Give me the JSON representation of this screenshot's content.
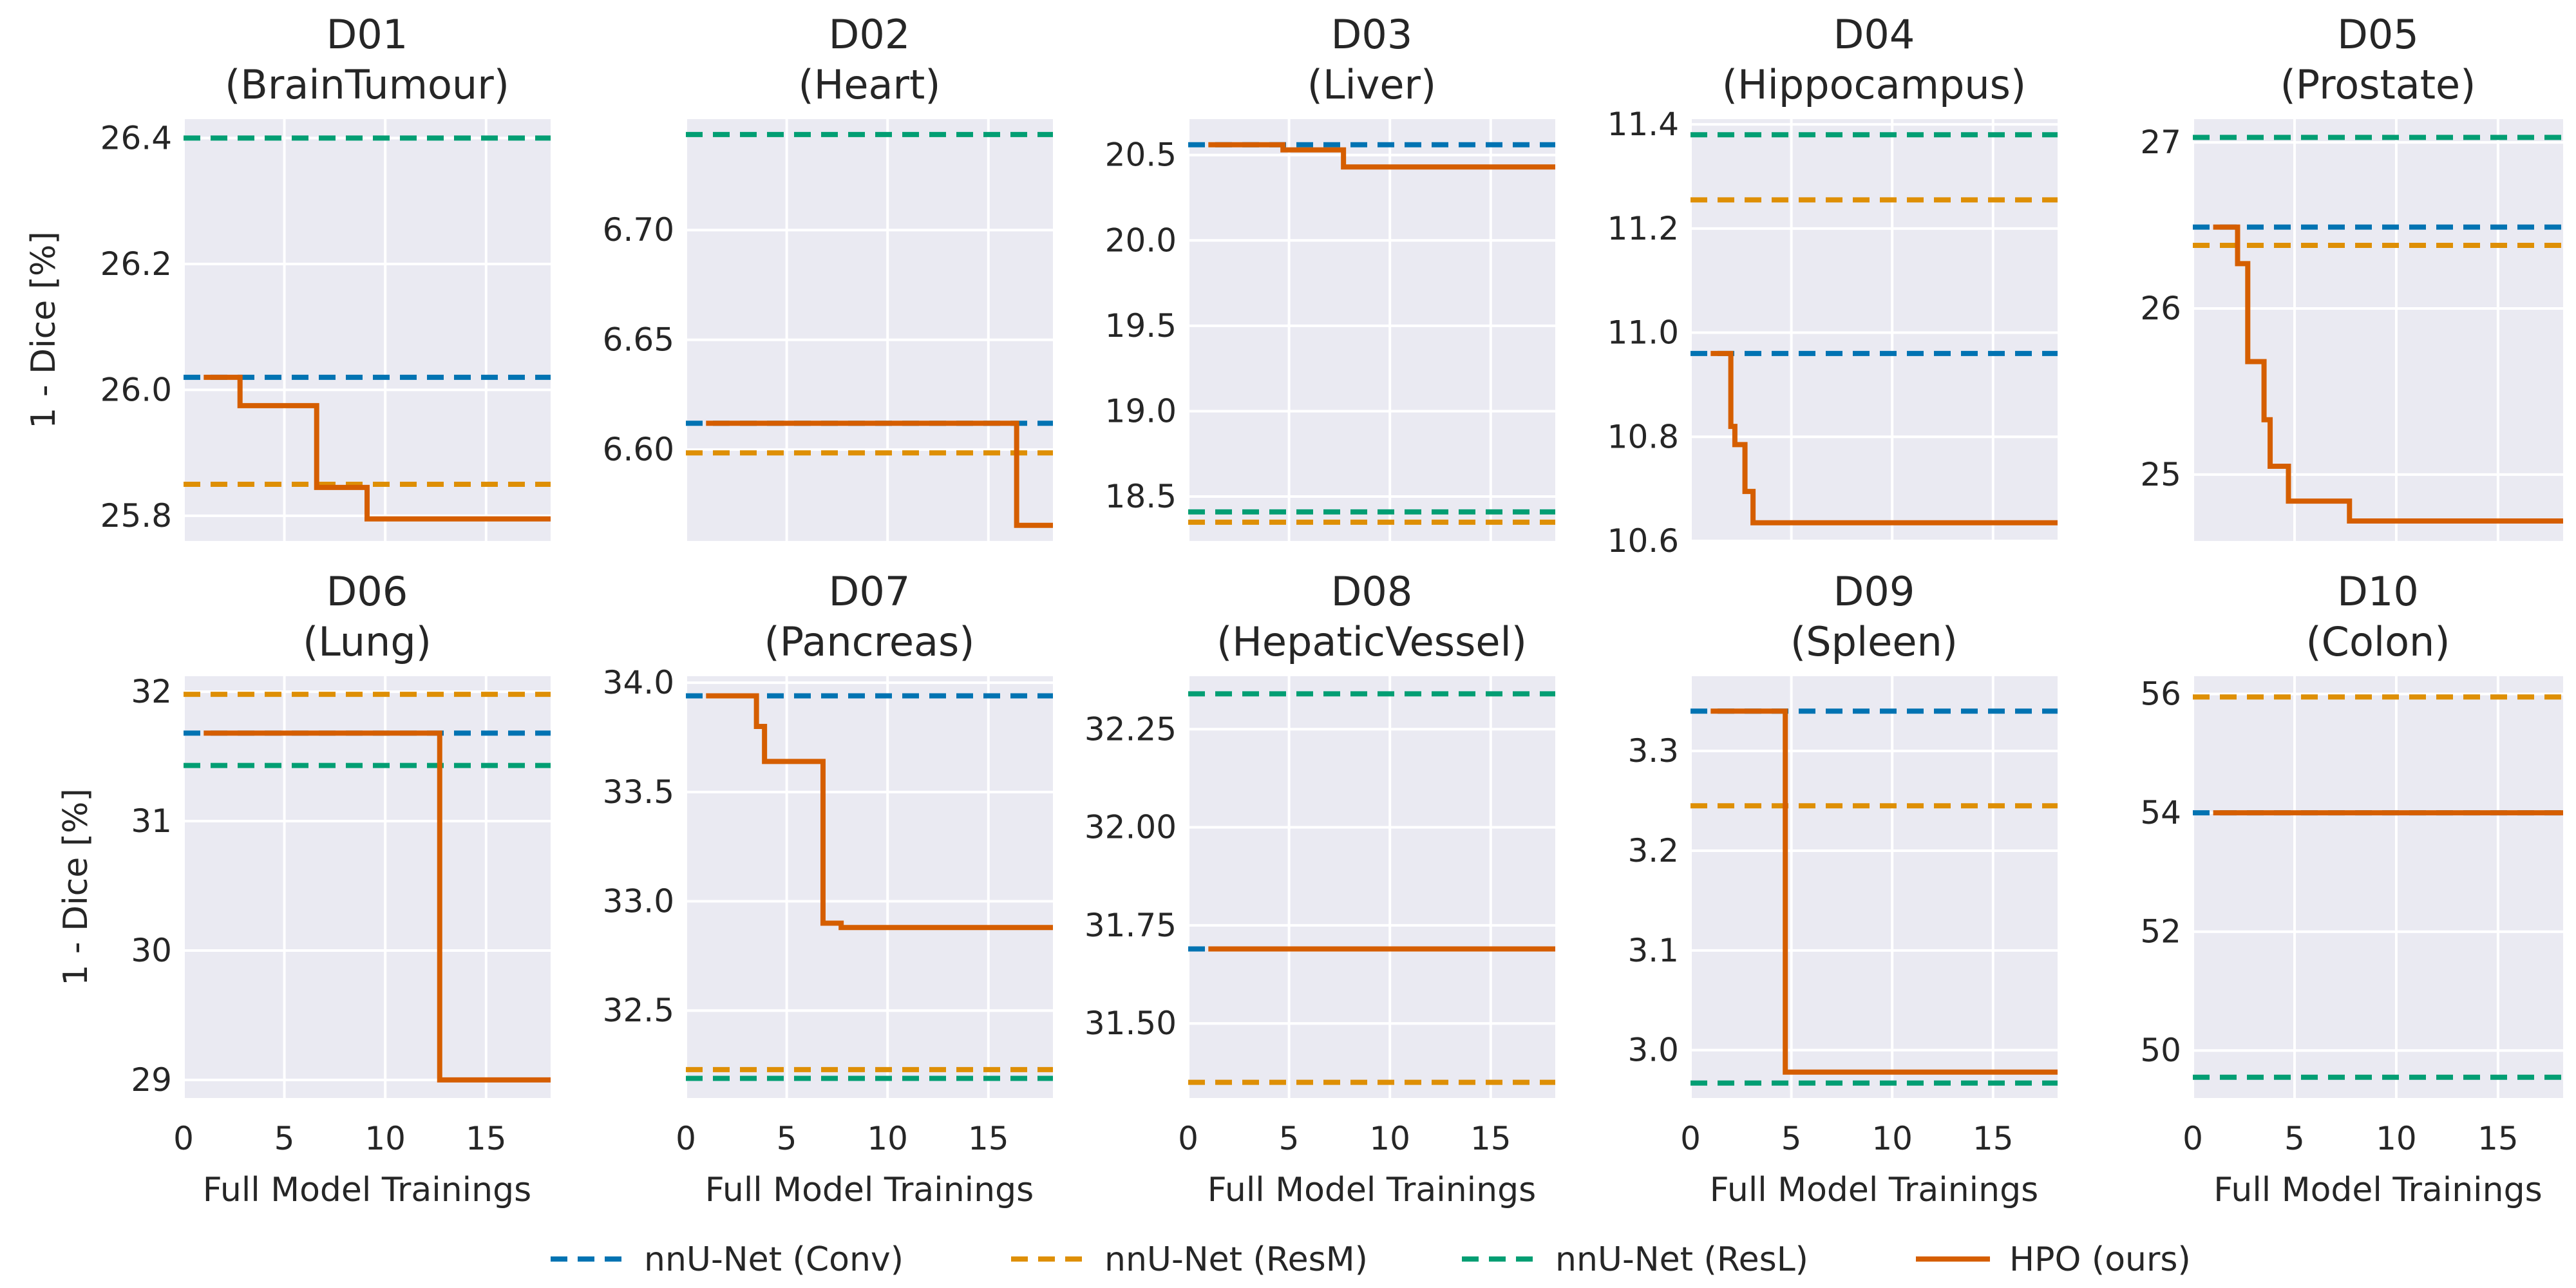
{
  "colors": {
    "background": "#eaeaf2",
    "grid": "#ffffff",
    "conv": "#0173b2",
    "resm": "#de8f05",
    "resl": "#029e73",
    "hpo": "#d55e00"
  },
  "legend": {
    "placement": "bottom-center",
    "entries": [
      {
        "key": "conv",
        "label": "nnU-Net (Conv)",
        "style": "dashed"
      },
      {
        "key": "resm",
        "label": "nnU-Net (ResM)",
        "style": "dashed"
      },
      {
        "key": "resl",
        "label": "nnU-Net (ResL)",
        "style": "dashed"
      },
      {
        "key": "hpo",
        "label": "HPO (ours)",
        "style": "solid"
      }
    ]
  },
  "chart_data": [
    {
      "type": "line",
      "title": [
        "D01",
        "(BrainTumour)"
      ],
      "ylabel": "1 - Dice [%]",
      "xlabel": "",
      "xlim": [
        0,
        18.2
      ],
      "ylim": [
        25.76,
        26.43
      ],
      "yticks": [
        25.8,
        26.0,
        26.2,
        26.4
      ],
      "ytick_labels": [
        "25.8",
        "26.0",
        "26.2",
        "26.4"
      ],
      "xticks": [
        0,
        5,
        10,
        15
      ],
      "xtick_labels": [],
      "baselines": {
        "conv": 26.02,
        "resm": 25.85,
        "resl": 26.4
      },
      "hpo": {
        "x": [
          1,
          2.8,
          6.6,
          9.1,
          18.2
        ],
        "y": [
          26.02,
          25.975,
          25.845,
          25.795,
          25.795
        ]
      }
    },
    {
      "type": "line",
      "title": [
        "D02",
        "(Heart)"
      ],
      "ylabel": "",
      "xlabel": "",
      "xlim": [
        0,
        18.2
      ],
      "ylim": [
        6.5584,
        6.7505
      ],
      "yticks": [
        6.6,
        6.65,
        6.7
      ],
      "ytick_labels": [
        "6.60",
        "6.65",
        "6.70"
      ],
      "xticks": [
        0,
        5,
        10,
        15
      ],
      "xtick_labels": [],
      "baselines": {
        "conv": 6.612,
        "resm": 6.5985,
        "resl": 6.7435
      },
      "hpo": {
        "x": [
          1,
          16.4,
          18.2
        ],
        "y": [
          6.612,
          6.5655,
          6.5655
        ]
      }
    },
    {
      "type": "line",
      "title": [
        "D03",
        "(Liver)"
      ],
      "ylabel": "",
      "xlabel": "",
      "xlim": [
        0,
        18.2
      ],
      "ylim": [
        18.24,
        20.71
      ],
      "yticks": [
        18.5,
        19.0,
        19.5,
        20.0,
        20.5
      ],
      "ytick_labels": [
        "18.5",
        "19.0",
        "19.5",
        "20.0",
        "20.5"
      ],
      "xticks": [
        0,
        5,
        10,
        15
      ],
      "xtick_labels": [],
      "baselines": {
        "conv": 20.56,
        "resm": 18.35,
        "resl": 18.41
      },
      "hpo": {
        "x": [
          1,
          4.7,
          7.7,
          18.2
        ],
        "y": [
          20.56,
          20.53,
          20.43,
          20.43
        ]
      }
    },
    {
      "type": "line",
      "title": [
        "D04",
        "(Hippocampus)"
      ],
      "ylabel": "",
      "xlabel": "",
      "xlim": [
        0,
        18.2
      ],
      "ylim": [
        10.6,
        11.41
      ],
      "yticks": [
        10.6,
        10.8,
        11.0,
        11.2,
        11.4
      ],
      "ytick_labels": [
        "10.6",
        "10.8",
        "11.0",
        "11.2",
        "11.4"
      ],
      "xticks": [
        0,
        5,
        10,
        15
      ],
      "xtick_labels": [],
      "baselines": {
        "conv": 10.96,
        "resm": 11.255,
        "resl": 11.38
      },
      "hpo": {
        "x": [
          1,
          2,
          2.2,
          2.7,
          3.1,
          18.2
        ],
        "y": [
          10.96,
          10.82,
          10.785,
          10.695,
          10.635,
          10.635
        ]
      }
    },
    {
      "type": "line",
      "title": [
        "D05",
        "(Prostate)"
      ],
      "ylabel": "",
      "xlabel": "",
      "xlim": [
        0,
        18.2
      ],
      "ylim": [
        24.6,
        27.14
      ],
      "yticks": [
        25,
        26,
        27
      ],
      "ytick_labels": [
        "25",
        "26",
        "27"
      ],
      "xticks": [
        0,
        5,
        10,
        15
      ],
      "xtick_labels": [],
      "baselines": {
        "conv": 26.49,
        "resm": 26.38,
        "resl": 27.03
      },
      "hpo": {
        "x": [
          1,
          2.2,
          2.7,
          3.5,
          3.8,
          4,
          4.7,
          7.7,
          18.2
        ],
        "y": [
          26.49,
          26.27,
          25.68,
          25.33,
          25.05,
          25.05,
          24.84,
          24.72,
          24.72
        ]
      }
    },
    {
      "type": "line",
      "title": [
        "D06",
        "(Lung)"
      ],
      "ylabel": "1 - Dice [%]",
      "xlabel": "Full Model Trainings",
      "xlim": [
        0,
        18.2
      ],
      "ylim": [
        28.86,
        32.12
      ],
      "yticks": [
        29,
        30,
        31,
        32
      ],
      "ytick_labels": [
        "29",
        "30",
        "31",
        "32"
      ],
      "xticks": [
        0,
        5,
        10,
        15
      ],
      "xtick_labels": [
        "0",
        "5",
        "10",
        "15"
      ],
      "baselines": {
        "conv": 31.68,
        "resm": 31.98,
        "resl": 31.43
      },
      "hpo": {
        "x": [
          1,
          12.7,
          18.2
        ],
        "y": [
          31.68,
          29.0,
          29.0
        ]
      }
    },
    {
      "type": "line",
      "title": [
        "D07",
        "(Pancreas)"
      ],
      "ylabel": "",
      "xlabel": "Full Model Trainings",
      "xlim": [
        0,
        18.2
      ],
      "ylim": [
        32.1,
        34.03
      ],
      "yticks": [
        32.5,
        33.0,
        33.5,
        34.0
      ],
      "ytick_labels": [
        "32.5",
        "33.0",
        "33.5",
        "34.0"
      ],
      "xticks": [
        0,
        5,
        10,
        15
      ],
      "xtick_labels": [
        "0",
        "5",
        "10",
        "15"
      ],
      "baselines": {
        "conv": 33.94,
        "resm": 32.23,
        "resl": 32.19
      },
      "hpo": {
        "x": [
          1,
          3.5,
          3.9,
          6.8,
          7.7,
          18.2
        ],
        "y": [
          33.94,
          33.8,
          33.64,
          32.9,
          32.88,
          32.88
        ]
      }
    },
    {
      "type": "line",
      "title": [
        "D08",
        "(HepaticVessel)"
      ],
      "ylabel": "",
      "xlabel": "Full Model Trainings",
      "xlim": [
        0,
        18.2
      ],
      "ylim": [
        31.31,
        32.385
      ],
      "yticks": [
        31.5,
        31.75,
        32.0,
        32.25
      ],
      "ytick_labels": [
        "31.50",
        "31.75",
        "32.00",
        "32.25"
      ],
      "xticks": [
        0,
        5,
        10,
        15
      ],
      "xtick_labels": [
        "0",
        "5",
        "10",
        "15"
      ],
      "baselines": {
        "conv": 31.69,
        "resm": 31.35,
        "resl": 32.34
      },
      "hpo": {
        "x": [
          1,
          18.2
        ],
        "y": [
          31.69,
          31.69
        ]
      }
    },
    {
      "type": "line",
      "title": [
        "D09",
        "(Spleen)"
      ],
      "ylabel": "",
      "xlabel": "Full Model Trainings",
      "xlim": [
        0,
        18.2
      ],
      "ylim": [
        2.952,
        3.375
      ],
      "yticks": [
        3.0,
        3.1,
        3.2,
        3.3
      ],
      "ytick_labels": [
        "3.0",
        "3.1",
        "3.2",
        "3.3"
      ],
      "xticks": [
        0,
        5,
        10,
        15
      ],
      "xtick_labels": [
        "0",
        "5",
        "10",
        "15"
      ],
      "baselines": {
        "conv": 3.34,
        "resm": 3.245,
        "resl": 2.967
      },
      "hpo": {
        "x": [
          1,
          4.7,
          18.2
        ],
        "y": [
          3.34,
          2.978,
          2.978
        ]
      }
    },
    {
      "type": "line",
      "title": [
        "D10",
        "(Colon)"
      ],
      "ylabel": "",
      "xlabel": "Full Model Trainings",
      "xlim": [
        0,
        18.2
      ],
      "ylim": [
        49.2,
        56.3
      ],
      "yticks": [
        50,
        52,
        54,
        56
      ],
      "ytick_labels": [
        "50",
        "52",
        "54",
        "56"
      ],
      "xticks": [
        0,
        5,
        10,
        15
      ],
      "xtick_labels": [
        "0",
        "5",
        "10",
        "15"
      ],
      "baselines": {
        "conv": 54.0,
        "resm": 55.95,
        "resl": 49.55
      },
      "hpo": {
        "x": [
          1,
          18.2
        ],
        "y": [
          54.0,
          54.0
        ]
      }
    }
  ]
}
